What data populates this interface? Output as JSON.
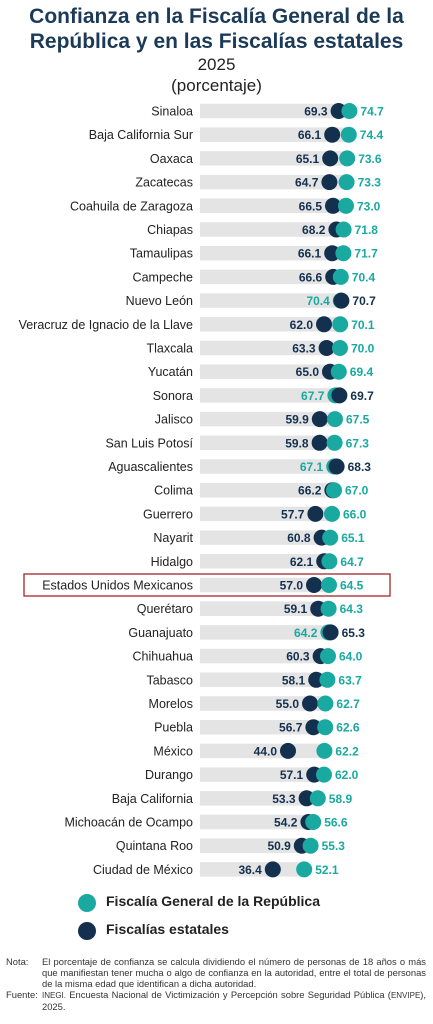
{
  "header": {
    "title_line1": "Confianza en la Fiscalía General de la",
    "title_line2": "República y en las Fiscalías estatales",
    "year": "2025",
    "unit": "(porcentaje)"
  },
  "colors": {
    "fgr": "#1aa9a0",
    "estatal": "#14304f",
    "bar": "#e4e4e4",
    "highlight_box": "#a5262a"
  },
  "chart_data": {
    "type": "dot",
    "xlim": [
      0,
      80
    ],
    "categories": [
      "Sinaloa",
      "Baja California Sur",
      "Oaxaca",
      "Zacatecas",
      "Coahuila de Zaragoza",
      "Chiapas",
      "Tamaulipas",
      "Campeche",
      "Nuevo León",
      "Veracruz de Ignacio de la Llave",
      "Tlaxcala",
      "Yucatán",
      "Sonora",
      "Jalisco",
      "San Luis Potosí",
      "Aguascalientes",
      "Colima",
      "Guerrero",
      "Nayarit",
      "Hidalgo",
      "Estados Unidos Mexicanos",
      "Querétaro",
      "Guanajuato",
      "Chihuahua",
      "Tabasco",
      "Morelos",
      "Puebla",
      "México",
      "Durango",
      "Baja California",
      "Michoacán de Ocampo",
      "Quintana Roo",
      "Ciudad de México"
    ],
    "highlight": "Estados Unidos Mexicanos",
    "series": [
      {
        "name": "Fiscalía General de la República",
        "values": [
          74.7,
          74.4,
          73.6,
          73.3,
          73.0,
          71.8,
          71.7,
          70.4,
          70.4,
          70.1,
          70.0,
          69.4,
          67.7,
          67.5,
          67.3,
          67.1,
          67.0,
          66.0,
          65.1,
          64.7,
          64.5,
          64.3,
          64.2,
          64.0,
          63.7,
          62.7,
          62.6,
          62.2,
          62.0,
          58.9,
          56.6,
          55.3,
          52.1
        ]
      },
      {
        "name": "Fiscalías estatales",
        "values": [
          69.3,
          66.1,
          65.1,
          64.7,
          66.5,
          68.2,
          66.1,
          66.6,
          70.7,
          62.0,
          63.3,
          65.0,
          69.7,
          59.9,
          59.8,
          68.3,
          66.2,
          57.7,
          60.8,
          62.1,
          57.0,
          59.1,
          65.3,
          60.3,
          58.1,
          55.0,
          56.7,
          44.0,
          57.1,
          53.3,
          54.2,
          50.9,
          36.4
        ]
      }
    ]
  },
  "legend": {
    "fgr": "Fiscalía General de la República",
    "estatal": "Fiscalías estatales"
  },
  "footer": {
    "note_key": "Nota:",
    "note_text": "El porcentaje de confianza se calcula dividiendo el número de personas de 18 años o más que manifiestan tener mucha o algo de confianza en la autoridad, entre el total de personas de la misma edad que identifican a dicha autoridad.",
    "source_key": "Fuente:",
    "source_org": "INEGI.",
    "source_text": "Encuesta Nacional de Victimización y Percepción sobre Seguridad Pública (",
    "source_acronym": "ENVIPE",
    "source_end": "), 2025."
  }
}
